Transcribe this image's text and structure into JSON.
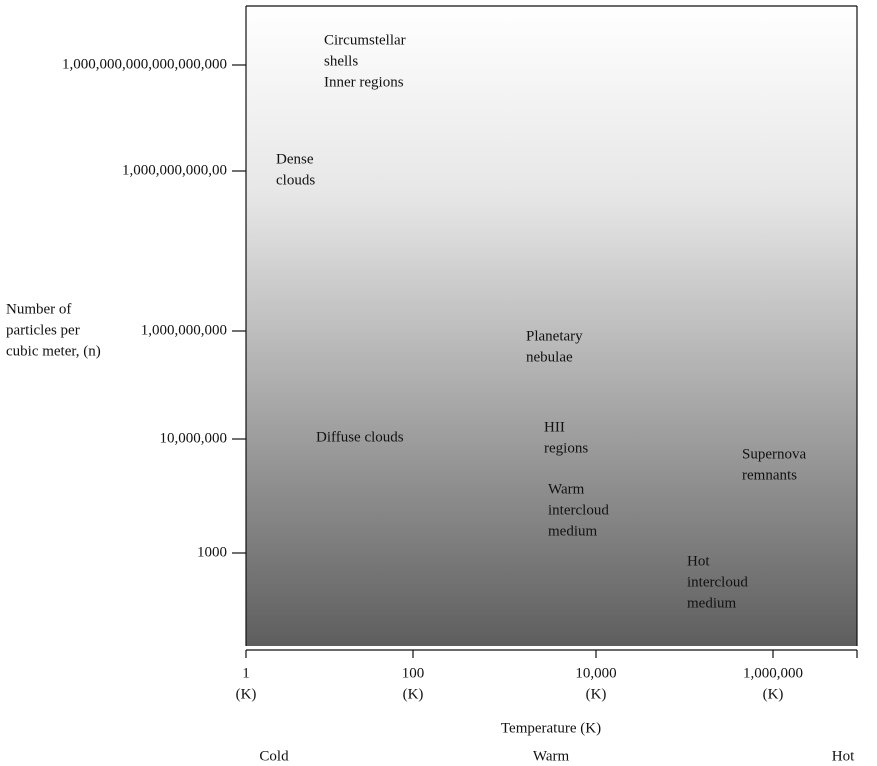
{
  "y_axis": {
    "label_lines": [
      "Number of",
      "particles per",
      "cubic meter, (n)"
    ],
    "ticks": [
      "1,000,000,000,000,000,000",
      "1,000,000,000,00",
      "1,000,000,000",
      "10,000,000",
      "1000"
    ]
  },
  "x_axis": {
    "ticks": [
      "1",
      "100",
      "10,000",
      "1,000,000"
    ],
    "unit": "(K)",
    "label": "Temperature (K)",
    "scale_words": [
      "Cold",
      "Warm",
      "Hot"
    ]
  },
  "regions": [
    {
      "lines": [
        "Circumstellar",
        "shells",
        "Inner regions"
      ]
    },
    {
      "lines": [
        "Dense",
        "clouds"
      ]
    },
    {
      "lines": [
        "Planetary",
        "nebulae"
      ]
    },
    {
      "lines": [
        "Diffuse clouds"
      ]
    },
    {
      "lines": [
        "HII",
        "regions"
      ]
    },
    {
      "lines": [
        "Supernova",
        "remnants"
      ]
    },
    {
      "lines": [
        "Warm",
        "intercloud",
        "medium"
      ]
    },
    {
      "lines": [
        "Hot",
        "intercloud",
        "medium"
      ]
    }
  ]
}
